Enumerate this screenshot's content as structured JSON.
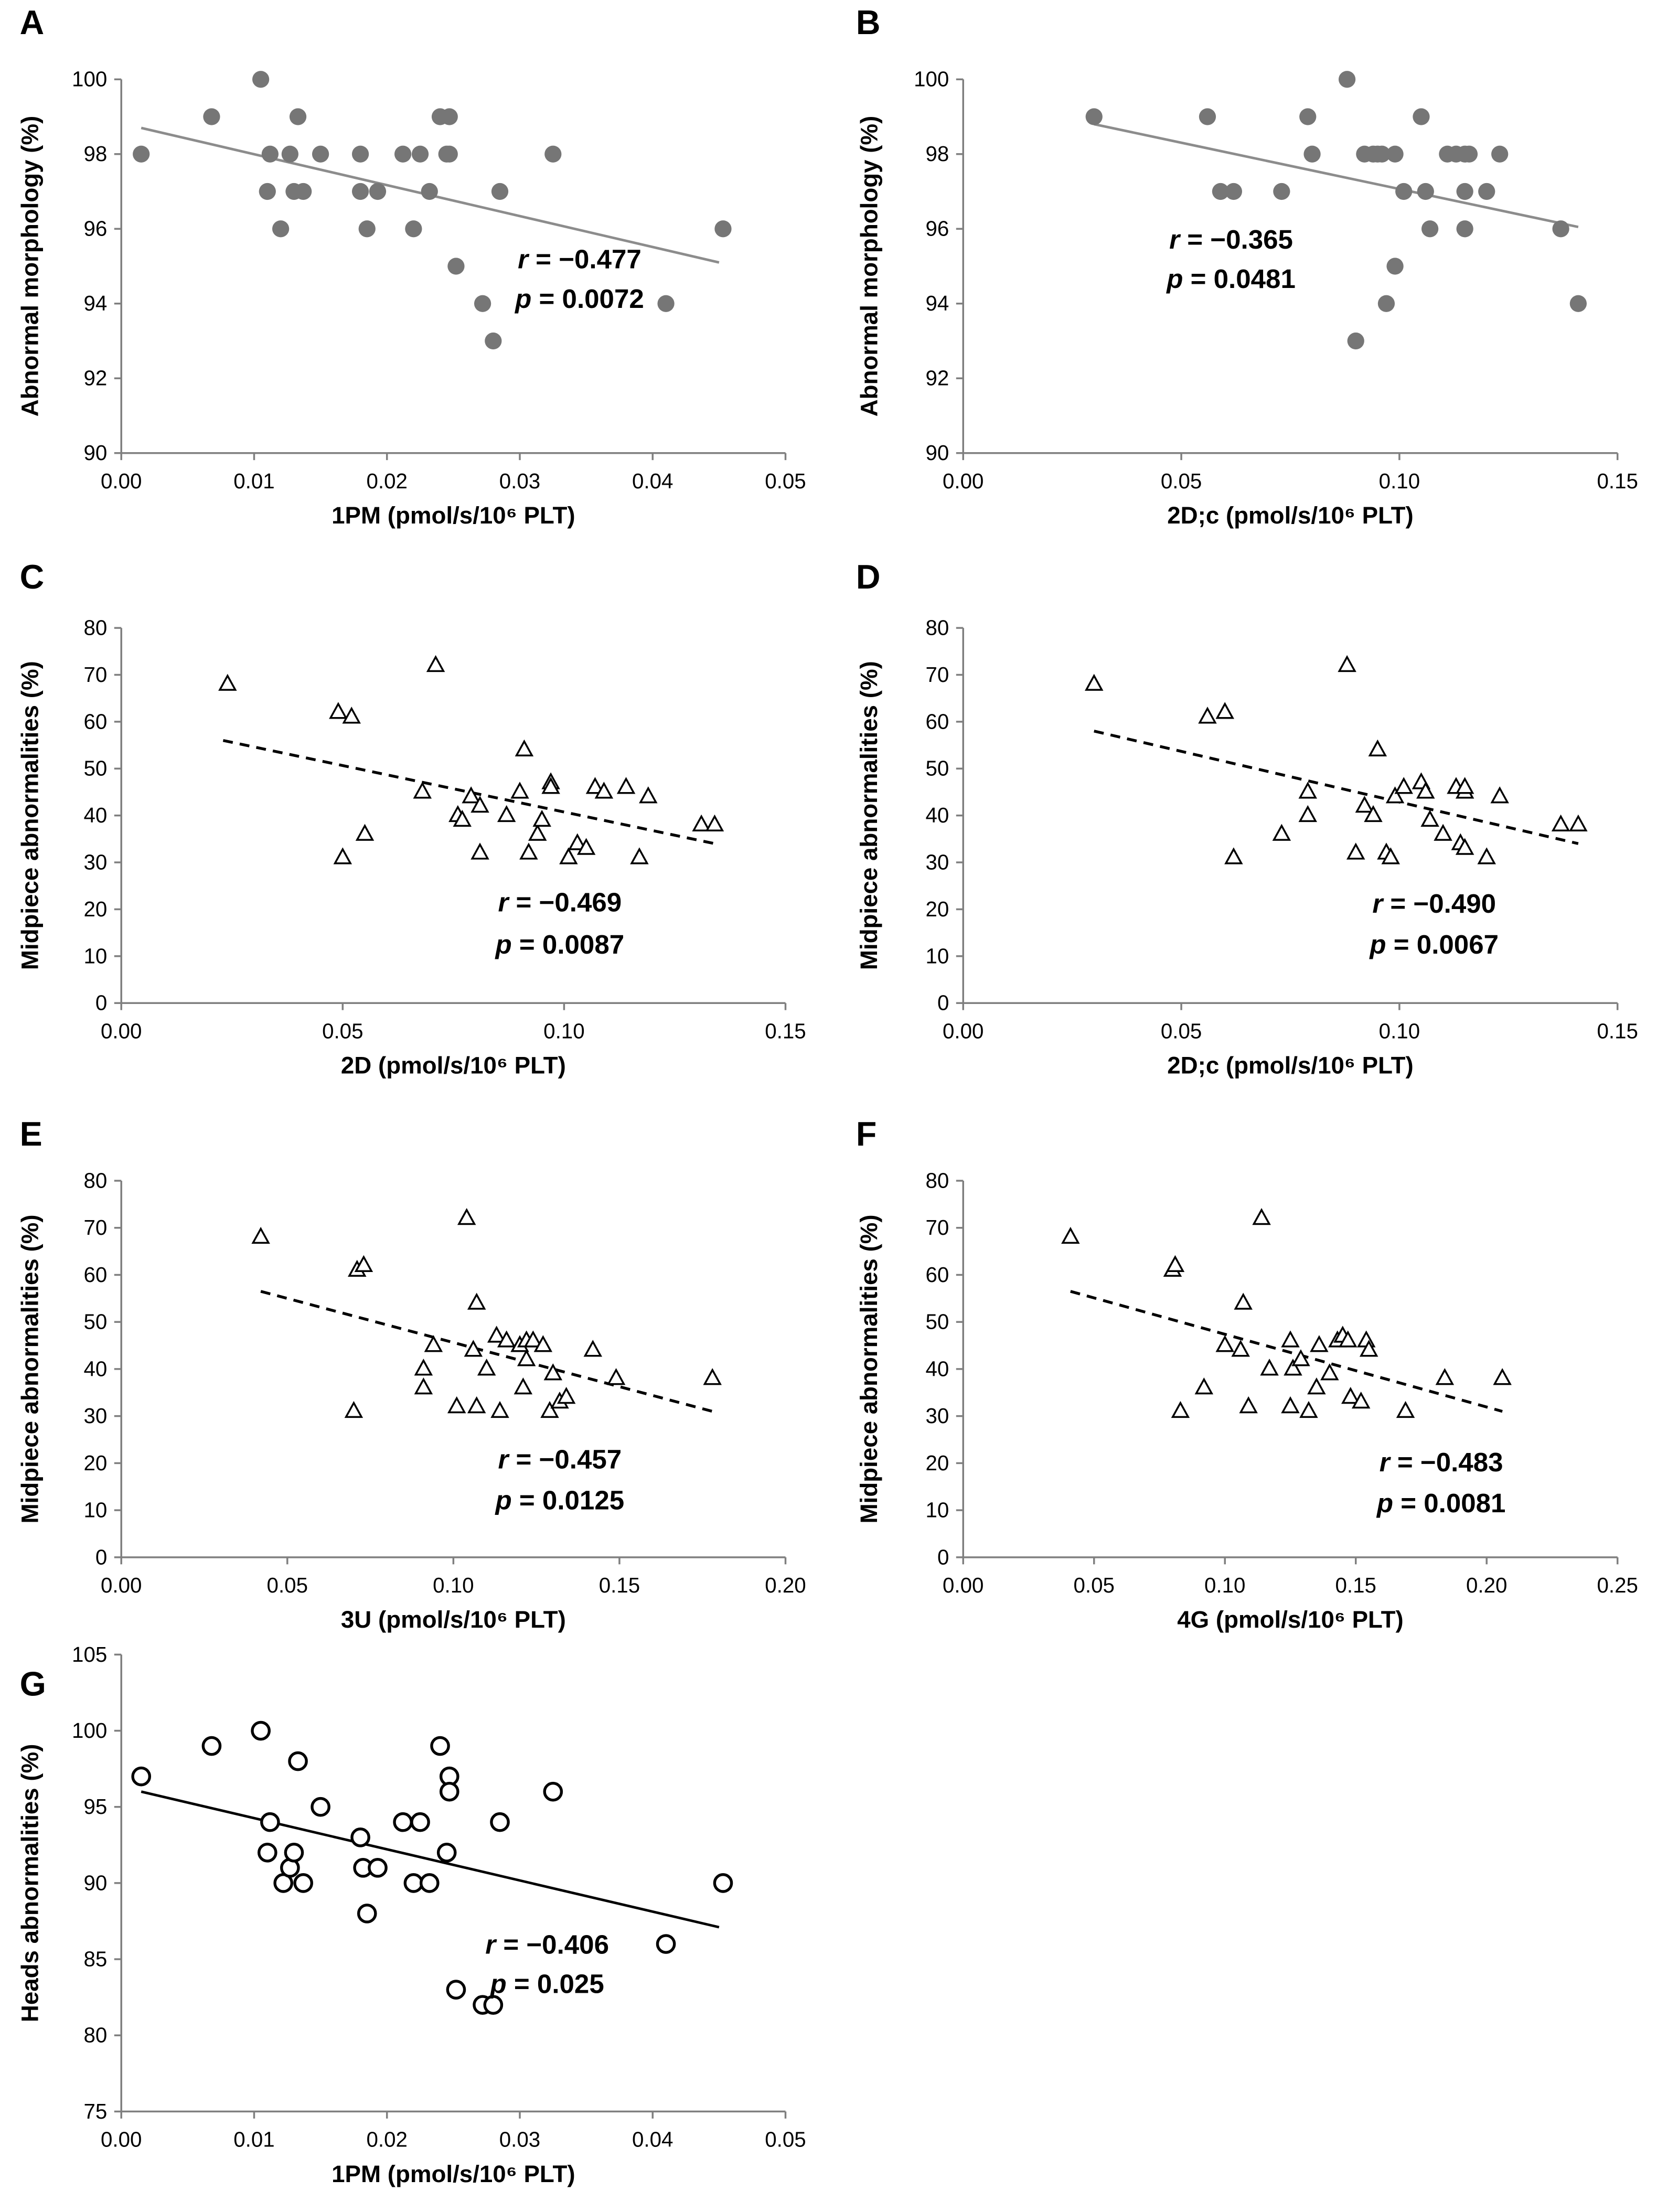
{
  "chart_data": [
    {
      "type": "scatter",
      "panel": "A",
      "xlabel": "1PM (pmol/s/10⁶ PLT)",
      "ylabel": "Abnormal morphology (%)",
      "xlim": [
        0,
        0.05
      ],
      "ylim": [
        90,
        100
      ],
      "xticks": [
        "0.00",
        "0.01",
        "0.02",
        "0.03",
        "0.04",
        "0.05"
      ],
      "yticks": [
        "90",
        "92",
        "94",
        "96",
        "98",
        "100"
      ],
      "marker": "filled-circle",
      "marker_color": "#767676",
      "line_style": "solid",
      "line_color": "#8c8c8c",
      "trend": [
        [
          0.0015,
          98.7
        ],
        [
          0.045,
          95.1
        ]
      ],
      "r_label": "r",
      "r_value": " = −0.477",
      "p_label": "p",
      "p_value": " = 0.0072",
      "points": [
        [
          0.0015,
          98
        ],
        [
          0.0068,
          99
        ],
        [
          0.0105,
          100
        ],
        [
          0.011,
          97
        ],
        [
          0.0112,
          98
        ],
        [
          0.012,
          96
        ],
        [
          0.0127,
          98
        ],
        [
          0.013,
          97
        ],
        [
          0.0133,
          99
        ],
        [
          0.0137,
          97
        ],
        [
          0.015,
          98
        ],
        [
          0.018,
          98
        ],
        [
          0.018,
          97
        ],
        [
          0.0185,
          96
        ],
        [
          0.0193,
          97
        ],
        [
          0.0212,
          98
        ],
        [
          0.022,
          96
        ],
        [
          0.0225,
          98
        ],
        [
          0.0232,
          97
        ],
        [
          0.024,
          99
        ],
        [
          0.0245,
          98
        ],
        [
          0.0247,
          99
        ],
        [
          0.0247,
          98
        ],
        [
          0.0252,
          95
        ],
        [
          0.0272,
          94
        ],
        [
          0.028,
          93
        ],
        [
          0.0285,
          97
        ],
        [
          0.0325,
          98
        ],
        [
          0.041,
          94
        ],
        [
          0.0453,
          96
        ]
      ]
    },
    {
      "type": "scatter",
      "panel": "B",
      "xlabel": "2D;c (pmol/s/10⁶ PLT)",
      "ylabel": "Abnormal morphology (%)",
      "xlim": [
        0,
        0.15
      ],
      "ylim": [
        90,
        100
      ],
      "xticks": [
        "0.00",
        "0.05",
        "0.10",
        "0.15"
      ],
      "yticks": [
        "90",
        "92",
        "94",
        "96",
        "98",
        "100"
      ],
      "marker": "filled-circle",
      "marker_color": "#767676",
      "line_style": "solid",
      "line_color": "#8c8c8c",
      "trend": [
        [
          0.03,
          98.8
        ],
        [
          0.141,
          96.05
        ]
      ],
      "r_label": "r",
      "r_value": " = −0.365",
      "p_label": "p",
      "p_value": " = 0.0481",
      "points": [
        [
          0.03,
          99
        ],
        [
          0.056,
          99
        ],
        [
          0.059,
          97
        ],
        [
          0.062,
          97
        ],
        [
          0.073,
          97
        ],
        [
          0.079,
          99
        ],
        [
          0.08,
          98
        ],
        [
          0.088,
          100
        ],
        [
          0.09,
          93
        ],
        [
          0.092,
          98
        ],
        [
          0.094,
          98
        ],
        [
          0.095,
          98
        ],
        [
          0.096,
          98
        ],
        [
          0.097,
          94
        ],
        [
          0.099,
          98
        ],
        [
          0.099,
          95
        ],
        [
          0.101,
          97
        ],
        [
          0.105,
          99
        ],
        [
          0.106,
          97
        ],
        [
          0.107,
          96
        ],
        [
          0.111,
          98
        ],
        [
          0.113,
          98
        ],
        [
          0.115,
          98
        ],
        [
          0.115,
          97
        ],
        [
          0.116,
          98
        ],
        [
          0.115,
          96
        ],
        [
          0.12,
          97
        ],
        [
          0.123,
          98
        ],
        [
          0.137,
          96
        ],
        [
          0.141,
          94
        ]
      ]
    },
    {
      "type": "scatter",
      "panel": "C",
      "xlabel": "2D (pmol/s/10⁶ PLT)",
      "ylabel": "Midpiece abnormalities (%)",
      "xlim": [
        0,
        0.15
      ],
      "ylim": [
        0,
        80
      ],
      "xticks": [
        "0.00",
        "0.05",
        "0.10",
        "0.15"
      ],
      "yticks": [
        "0",
        "10",
        "20",
        "30",
        "40",
        "50",
        "60",
        "70",
        "80"
      ],
      "marker": "open-triangle",
      "marker_color": "#000000",
      "line_style": "dashed",
      "line_color": "#000000",
      "trend": [
        [
          0.023,
          56
        ],
        [
          0.134,
          34
        ]
      ],
      "r_label": "r",
      "r_value": " = −0.469",
      "p_label": "p",
      "p_value": " = 0.0087",
      "points": [
        [
          0.024,
          68
        ],
        [
          0.049,
          62
        ],
        [
          0.052,
          61
        ],
        [
          0.05,
          31
        ],
        [
          0.055,
          36
        ],
        [
          0.068,
          45
        ],
        [
          0.071,
          72
        ],
        [
          0.076,
          40
        ],
        [
          0.077,
          39
        ],
        [
          0.079,
          44
        ],
        [
          0.081,
          42
        ],
        [
          0.081,
          32
        ],
        [
          0.087,
          40
        ],
        [
          0.09,
          45
        ],
        [
          0.091,
          54
        ],
        [
          0.092,
          32
        ],
        [
          0.094,
          36
        ],
        [
          0.095,
          39
        ],
        [
          0.097,
          47
        ],
        [
          0.097,
          46
        ],
        [
          0.101,
          31
        ],
        [
          0.103,
          34
        ],
        [
          0.105,
          33
        ],
        [
          0.107,
          46
        ],
        [
          0.109,
          45
        ],
        [
          0.114,
          46
        ],
        [
          0.117,
          31
        ],
        [
          0.119,
          44
        ],
        [
          0.131,
          38
        ],
        [
          0.134,
          38
        ]
      ]
    },
    {
      "type": "scatter",
      "panel": "D",
      "xlabel": "2D;c (pmol/s/10⁶ PLT)",
      "ylabel": "Midpiece abnormalities (%)",
      "xlim": [
        0,
        0.15
      ],
      "ylim": [
        0,
        80
      ],
      "xticks": [
        "0.00",
        "0.05",
        "0.10",
        "0.15"
      ],
      "yticks": [
        "0",
        "10",
        "20",
        "30",
        "40",
        "50",
        "60",
        "70",
        "80"
      ],
      "marker": "open-triangle",
      "marker_color": "#000000",
      "line_style": "dashed",
      "line_color": "#000000",
      "trend": [
        [
          0.03,
          58
        ],
        [
          0.141,
          34
        ]
      ],
      "r_label": "r",
      "r_value": " = −0.490",
      "p_label": "p",
      "p_value": " = 0.0067",
      "points": [
        [
          0.03,
          68
        ],
        [
          0.056,
          61
        ],
        [
          0.06,
          62
        ],
        [
          0.062,
          31
        ],
        [
          0.073,
          36
        ],
        [
          0.079,
          45
        ],
        [
          0.079,
          40
        ],
        [
          0.088,
          72
        ],
        [
          0.09,
          32
        ],
        [
          0.092,
          42
        ],
        [
          0.094,
          40
        ],
        [
          0.095,
          54
        ],
        [
          0.097,
          32
        ],
        [
          0.098,
          31
        ],
        [
          0.099,
          44
        ],
        [
          0.101,
          46
        ],
        [
          0.105,
          47
        ],
        [
          0.106,
          45
        ],
        [
          0.107,
          39
        ],
        [
          0.11,
          36
        ],
        [
          0.113,
          46
        ],
        [
          0.115,
          45
        ],
        [
          0.115,
          46
        ],
        [
          0.114,
          34
        ],
        [
          0.115,
          33
        ],
        [
          0.12,
          31
        ],
        [
          0.123,
          44
        ],
        [
          0.137,
          38
        ],
        [
          0.141,
          38
        ]
      ]
    },
    {
      "type": "scatter",
      "panel": "E",
      "xlabel": "3U (pmol/s/10⁶ PLT)",
      "ylabel": "Midpiece abnormalities (%)",
      "xlim": [
        0,
        0.2
      ],
      "ylim": [
        0,
        80
      ],
      "xticks": [
        "0.00",
        "0.05",
        "0.10",
        "0.15",
        "0.20"
      ],
      "yticks": [
        "0",
        "10",
        "20",
        "30",
        "40",
        "50",
        "60",
        "70",
        "80"
      ],
      "marker": "open-triangle",
      "marker_color": "#000000",
      "line_style": "dashed",
      "line_color": "#000000",
      "trend": [
        [
          0.042,
          56.5
        ],
        [
          0.178,
          31
        ]
      ],
      "r_label": "r",
      "r_value": " = −0.457",
      "p_label": "p",
      "p_value": " = 0.0125",
      "points": [
        [
          0.042,
          68
        ],
        [
          0.071,
          61
        ],
        [
          0.073,
          62
        ],
        [
          0.07,
          31
        ],
        [
          0.091,
          40
        ],
        [
          0.091,
          36
        ],
        [
          0.094,
          45
        ],
        [
          0.101,
          32
        ],
        [
          0.104,
          72
        ],
        [
          0.106,
          44
        ],
        [
          0.107,
          54
        ],
        [
          0.107,
          32
        ],
        [
          0.11,
          40
        ],
        [
          0.113,
          47
        ],
        [
          0.114,
          31
        ],
        [
          0.116,
          46
        ],
        [
          0.12,
          45
        ],
        [
          0.121,
          36
        ],
        [
          0.122,
          46
        ],
        [
          0.122,
          42
        ],
        [
          0.124,
          46
        ],
        [
          0.127,
          45
        ],
        [
          0.129,
          31
        ],
        [
          0.13,
          39
        ],
        [
          0.132,
          33
        ],
        [
          0.134,
          34
        ],
        [
          0.142,
          44
        ],
        [
          0.149,
          38
        ],
        [
          0.178,
          38
        ]
      ]
    },
    {
      "type": "scatter",
      "panel": "F",
      "xlabel": "4G (pmol/s/10⁶ PLT)",
      "ylabel": "Midpiece abnormalities (%)",
      "xlim": [
        0,
        0.25
      ],
      "ylim": [
        0,
        80
      ],
      "xticks": [
        "0.00",
        "0.05",
        "0.10",
        "0.15",
        "0.20",
        "0.25"
      ],
      "yticks": [
        "0",
        "10",
        "20",
        "30",
        "40",
        "50",
        "60",
        "70",
        "80"
      ],
      "marker": "open-triangle",
      "marker_color": "#000000",
      "line_style": "dashed",
      "line_color": "#000000",
      "trend": [
        [
          0.041,
          56.5
        ],
        [
          0.206,
          31
        ]
      ],
      "r_label": "r",
      "r_value": " = −0.483",
      "p_label": "p",
      "p_value": " = 0.0081",
      "points": [
        [
          0.041,
          68
        ],
        [
          0.08,
          61
        ],
        [
          0.081,
          62
        ],
        [
          0.083,
          31
        ],
        [
          0.092,
          36
        ],
        [
          0.1,
          45
        ],
        [
          0.106,
          44
        ],
        [
          0.107,
          54
        ],
        [
          0.109,
          32
        ],
        [
          0.114,
          72
        ],
        [
          0.117,
          40
        ],
        [
          0.125,
          46
        ],
        [
          0.125,
          32
        ],
        [
          0.126,
          40
        ],
        [
          0.129,
          42
        ],
        [
          0.132,
          31
        ],
        [
          0.135,
          36
        ],
        [
          0.136,
          45
        ],
        [
          0.14,
          39
        ],
        [
          0.143,
          46
        ],
        [
          0.145,
          47
        ],
        [
          0.147,
          46
        ],
        [
          0.148,
          34
        ],
        [
          0.152,
          33
        ],
        [
          0.154,
          46
        ],
        [
          0.155,
          44
        ],
        [
          0.169,
          31
        ],
        [
          0.184,
          38
        ],
        [
          0.206,
          38
        ]
      ]
    },
    {
      "type": "scatter",
      "panel": "G",
      "xlabel": "1PM (pmol/s/10⁶ PLT)",
      "ylabel": "Heads abnormalities (%)",
      "xlim": [
        0,
        0.05
      ],
      "ylim": [
        75,
        105
      ],
      "xticks": [
        "0.00",
        "0.01",
        "0.02",
        "0.03",
        "0.04",
        "0.05"
      ],
      "yticks": [
        "75",
        "80",
        "85",
        "90",
        "95",
        "100",
        "105"
      ],
      "marker": "open-circle",
      "marker_color": "#000000",
      "line_style": "solid",
      "line_color": "#000000",
      "trend": [
        [
          0.0015,
          96
        ],
        [
          0.045,
          87.1
        ]
      ],
      "r_label": "r",
      "r_value": " = −0.406",
      "p_label": "p",
      "p_value": " = 0.025",
      "points": [
        [
          0.0015,
          97
        ],
        [
          0.0068,
          99
        ],
        [
          0.0105,
          100
        ],
        [
          0.011,
          92
        ],
        [
          0.0112,
          94
        ],
        [
          0.0122,
          90
        ],
        [
          0.0127,
          91
        ],
        [
          0.013,
          92
        ],
        [
          0.0133,
          98
        ],
        [
          0.0137,
          90
        ],
        [
          0.015,
          95
        ],
        [
          0.018,
          93
        ],
        [
          0.0182,
          91
        ],
        [
          0.0185,
          88
        ],
        [
          0.0193,
          91
        ],
        [
          0.0212,
          94
        ],
        [
          0.022,
          90
        ],
        [
          0.0225,
          94
        ],
        [
          0.0232,
          90
        ],
        [
          0.024,
          99
        ],
        [
          0.0245,
          92
        ],
        [
          0.0247,
          97
        ],
        [
          0.0247,
          96
        ],
        [
          0.0252,
          83
        ],
        [
          0.0272,
          82
        ],
        [
          0.028,
          82
        ],
        [
          0.0285,
          94
        ],
        [
          0.0325,
          96
        ],
        [
          0.041,
          86
        ],
        [
          0.0453,
          90
        ]
      ]
    }
  ]
}
